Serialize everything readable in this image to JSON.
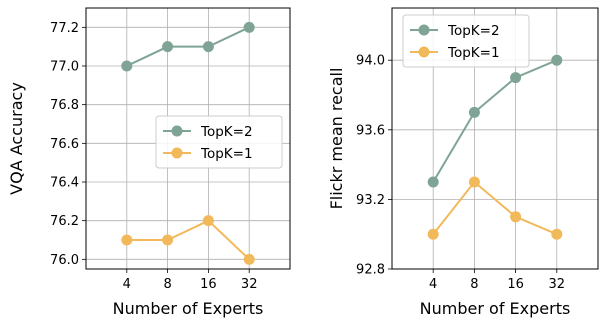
{
  "colors": {
    "topk2": "#7fa495",
    "topk1": "#f2b95a"
  },
  "chart_data": [
    {
      "type": "line",
      "title": "",
      "xlabel": "Number of Experts",
      "ylabel": "VQA Accuracy",
      "categories": [
        "4",
        "8",
        "16",
        "32"
      ],
      "xlim": [
        0,
        5
      ],
      "ylim": [
        75.95,
        77.3
      ],
      "yticks": [
        76.0,
        76.2,
        76.4,
        76.6,
        76.8,
        77.0,
        77.2
      ],
      "ytick_labels": [
        "76.0",
        "76.2",
        "76.4",
        "76.6",
        "76.8",
        "77.0",
        "77.2"
      ],
      "grid": true,
      "legend_position": "center-right",
      "series": [
        {
          "name": "TopK=2",
          "color_key": "topk2",
          "values": [
            77.0,
            77.1,
            77.1,
            77.2
          ]
        },
        {
          "name": "TopK=1",
          "color_key": "topk1",
          "values": [
            76.1,
            76.1,
            76.2,
            76.0
          ]
        }
      ]
    },
    {
      "type": "line",
      "title": "",
      "xlabel": "Number of Experts",
      "ylabel": "Flickr mean recall",
      "categories": [
        "4",
        "8",
        "16",
        "32"
      ],
      "xlim": [
        0,
        5
      ],
      "ylim": [
        92.8,
        94.3
      ],
      "yticks": [
        92.8,
        93.2,
        93.6,
        94.0
      ],
      "ytick_labels": [
        "92.8",
        "93.2",
        "93.6",
        "94.0"
      ],
      "grid": true,
      "legend_position": "top-left",
      "series": [
        {
          "name": "TopK=2",
          "color_key": "topk2",
          "values": [
            93.3,
            93.7,
            93.9,
            94.0
          ]
        },
        {
          "name": "TopK=1",
          "color_key": "topk1",
          "values": [
            93.0,
            93.3,
            93.1,
            93.0
          ]
        }
      ]
    }
  ]
}
